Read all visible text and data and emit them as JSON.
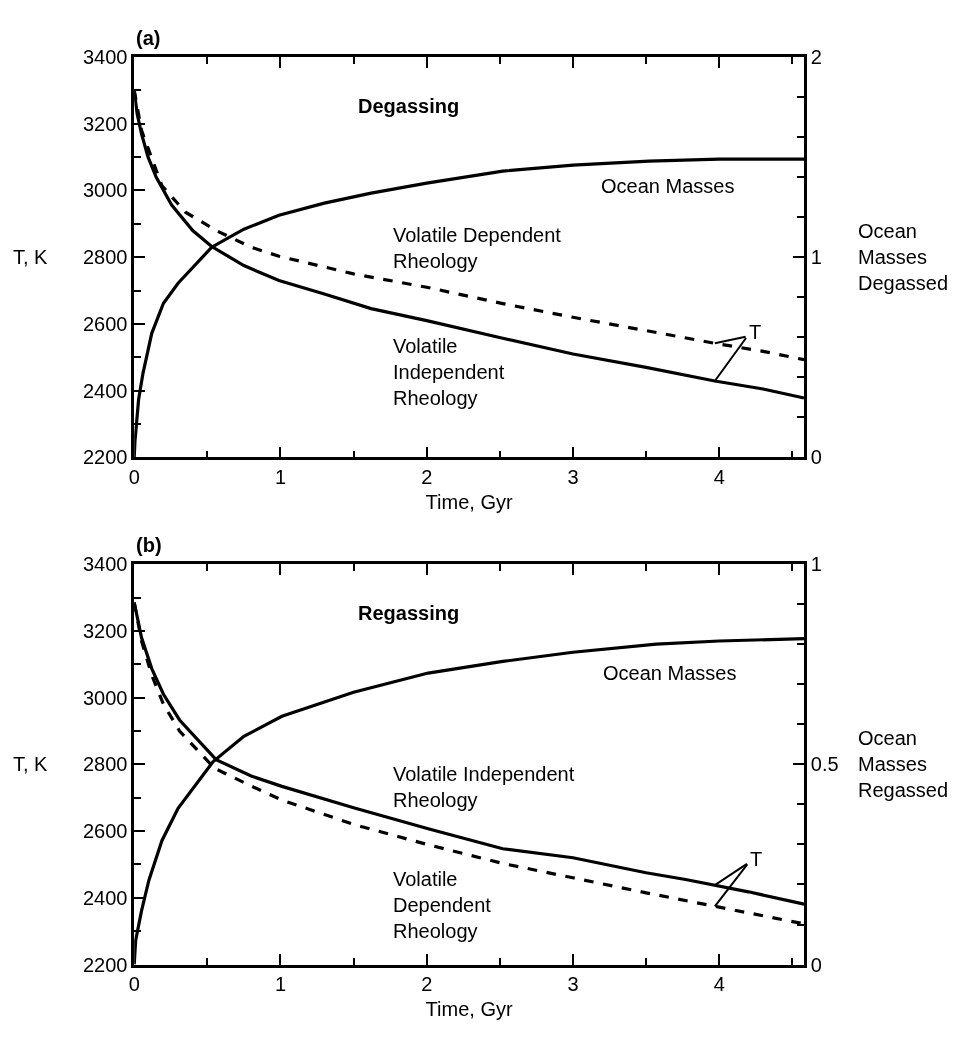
{
  "chart_data": [
    {
      "type": "line",
      "title": "(a)",
      "subtitle": "Degassing",
      "xlabel": "Time, Gyr",
      "ylabel": "T, K",
      "y2label": "Ocean\nMasses\nDegassed",
      "xlim": [
        0,
        4.58
      ],
      "xticks": [
        0,
        {
          "value": 0.5,
          "label": null
        },
        1,
        {
          "value": 1.5,
          "label": null
        },
        2,
        {
          "value": 2.5,
          "label": null
        },
        3,
        {
          "value": 3.5,
          "label": null
        },
        4,
        {
          "value": 4.5,
          "label": null
        }
      ],
      "ylim": [
        2200,
        3400
      ],
      "yticks": [
        2200,
        {
          "value": 2300,
          "label": null
        },
        2400,
        {
          "value": 2500,
          "label": null
        },
        2600,
        {
          "value": 2700,
          "label": null
        },
        2800,
        {
          "value": 2900,
          "label": null
        },
        3000,
        {
          "value": 3100,
          "label": null
        },
        3200,
        {
          "value": 3300,
          "label": null
        },
        3400
      ],
      "y2lim": [
        0,
        2
      ],
      "y2ticks": [
        0,
        {
          "value": 0.2,
          "label": null
        },
        {
          "value": 0.4,
          "label": null
        },
        {
          "value": 0.6,
          "label": null
        },
        {
          "value": 0.8,
          "label": null
        },
        1,
        {
          "value": 1.2,
          "label": null
        },
        {
          "value": 1.4,
          "label": null
        },
        {
          "value": 1.6,
          "label": null
        },
        {
          "value": 1.8,
          "label": null
        },
        2
      ],
      "series": [
        {
          "color": "#000000",
          "line_style": "solid",
          "x": [
            0,
            0.02,
            0.05,
            0.095,
            0.15,
            0.255,
            0.4,
            0.53,
            0.75,
            0.99,
            1.3,
            1.62,
            2.0,
            2.52,
            3.0,
            3.5,
            3.97,
            4.3,
            4.58
          ],
          "values": [
            3300,
            3230,
            3170,
            3100,
            3040,
            2957,
            2880,
            2832,
            2775,
            2730,
            2690,
            2646,
            2610,
            2557,
            2510,
            2470,
            2429,
            2405,
            2378
          ]
        },
        {
          "color": "#000000",
          "line_style": "dashed",
          "x": [
            0,
            0.05,
            0.19,
            0.35,
            0.57,
            0.8,
            0.99,
            1.5,
            2.0,
            2.52,
            3.0,
            3.5,
            3.97,
            4.3,
            4.58
          ],
          "values": [
            3300,
            3180,
            3014,
            2935,
            2878,
            2830,
            2803,
            2750,
            2710,
            2661,
            2620,
            2580,
            2542,
            2518,
            2493
          ]
        },
        {
          "color": "#000000",
          "line_style": "solid",
          "axis": "y2",
          "x": [
            0,
            0.005,
            0.01,
            0.03,
            0.06,
            0.12,
            0.2,
            0.3,
            0.53,
            0.75,
            0.99,
            1.3,
            1.62,
            2.0,
            2.52,
            3.0,
            3.52,
            4.0,
            4.58
          ],
          "values": [
            0,
            0.08,
            0.12,
            0.29,
            0.42,
            0.62,
            0.77,
            0.87,
            1.05,
            1.14,
            1.21,
            1.27,
            1.32,
            1.37,
            1.43,
            1.46,
            1.48,
            1.49,
            1.49
          ]
        }
      ],
      "annotations": [
        "Ocean Masses",
        "Volatile Dependent\nRheology",
        "Volatile\nIndependent\nRheology",
        {
          "text": "T",
          "x": 3.97,
          "y": 2429
        }
      ]
    },
    {
      "type": "line",
      "title": "(b)",
      "subtitle": "Regassing",
      "xlabel": "Time, Gyr",
      "ylabel": "T, K",
      "y2label": "Ocean\nMasses\nRegassed",
      "xlim": [
        0,
        4.58
      ],
      "xticks": [
        0,
        {
          "value": 0.5,
          "label": null
        },
        1,
        {
          "value": 1.5,
          "label": null
        },
        2,
        {
          "value": 2.5,
          "label": null
        },
        3,
        {
          "value": 3.5,
          "label": null
        },
        4,
        {
          "value": 4.5,
          "label": null
        }
      ],
      "ylim": [
        2200,
        3400
      ],
      "yticks": [
        2200,
        {
          "value": 2300,
          "label": null
        },
        2400,
        {
          "value": 2500,
          "label": null
        },
        2600,
        {
          "value": 2700,
          "label": null
        },
        2800,
        {
          "value": 2900,
          "label": null
        },
        3000,
        {
          "value": 3100,
          "label": null
        },
        3200,
        {
          "value": 3300,
          "label": null
        },
        3400
      ],
      "y2lim": [
        0,
        1
      ],
      "y2ticks": [
        0,
        {
          "value": 0.1,
          "label": null
        },
        {
          "value": 0.2,
          "label": null
        },
        {
          "value": 0.3,
          "label": null
        },
        {
          "value": 0.4,
          "label": null
        },
        0.5,
        {
          "value": 0.6,
          "label": null
        },
        {
          "value": 0.7,
          "label": null
        },
        {
          "value": 0.8,
          "label": null
        },
        {
          "value": 0.9,
          "label": null
        },
        1
      ],
      "series": [
        {
          "color": "#000000",
          "line_style": "solid",
          "x": [
            0,
            0.05,
            0.12,
            0.2,
            0.31,
            0.56,
            0.8,
            1.01,
            1.5,
            2.01,
            2.52,
            3.0,
            3.5,
            3.77,
            4.2,
            4.58
          ],
          "values": [
            3285,
            3180,
            3087,
            3010,
            2933,
            2814,
            2765,
            2734,
            2670,
            2607,
            2547,
            2520,
            2475,
            2455,
            2418,
            2381
          ]
        },
        {
          "color": "#000000",
          "line_style": "dashed",
          "x": [
            0,
            0.05,
            0.12,
            0.2,
            0.31,
            0.55,
            0.8,
            1.01,
            1.5,
            2.01,
            2.52,
            3.0,
            3.5,
            4.0,
            4.58
          ],
          "values": [
            3285,
            3170,
            3067,
            2980,
            2900,
            2788,
            2735,
            2693,
            2620,
            2559,
            2503,
            2460,
            2415,
            2372,
            2322
          ]
        },
        {
          "color": "#000000",
          "line_style": "solid",
          "axis": "y2",
          "x": [
            0,
            0.01,
            0.05,
            0.1,
            0.19,
            0.3,
            0.54,
            0.75,
            1.01,
            1.5,
            2.01,
            2.52,
            3.0,
            3.57,
            4.0,
            4.58
          ],
          "values": [
            0,
            0.06,
            0.134,
            0.21,
            0.31,
            0.39,
            0.507,
            0.57,
            0.62,
            0.68,
            0.728,
            0.757,
            0.78,
            0.8,
            0.808,
            0.814
          ]
        }
      ],
      "annotations": [
        "Ocean Masses",
        "Volatile Independent\nRheology",
        "Volatile\nDependent\nRheology",
        {
          "text": "T",
          "x": 3.97,
          "y": 2438
        }
      ]
    }
  ]
}
